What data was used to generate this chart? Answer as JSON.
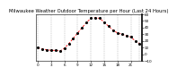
{
  "title": "Milwaukee Weather Outdoor Temperature per Hour (Last 24 Hours)",
  "x_values": [
    0,
    1,
    2,
    3,
    4,
    5,
    6,
    7,
    8,
    9,
    10,
    11,
    12,
    13,
    14,
    15,
    16,
    17,
    18,
    19,
    20,
    21,
    22,
    23
  ],
  "y_values": [
    10,
    8,
    7,
    6,
    6,
    5,
    9,
    16,
    24,
    32,
    40,
    48,
    54,
    55,
    54,
    48,
    42,
    36,
    32,
    30,
    28,
    26,
    20,
    16
  ],
  "y_min": -10,
  "y_max": 60,
  "y_ticks": [
    -10,
    0,
    10,
    20,
    30,
    40,
    50,
    60
  ],
  "line_color": "#ff0000",
  "marker_color": "#000000",
  "grid_color": "#888888",
  "bg_color": "#ffffff",
  "vgrid_positions": [
    0,
    3,
    6,
    9,
    12,
    15,
    18,
    21,
    23
  ],
  "title_fontsize": 3.8,
  "tick_fontsize": 3.0,
  "right_border_color": "#000000"
}
